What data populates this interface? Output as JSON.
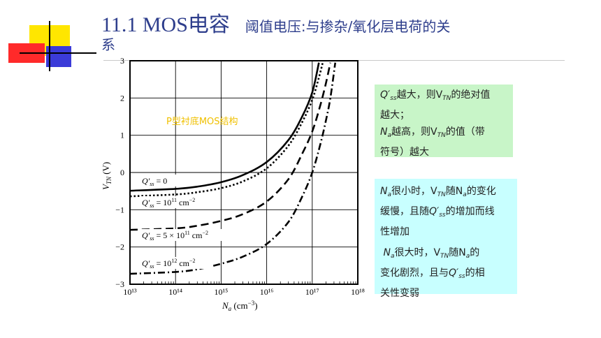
{
  "title": {
    "main": "11.1 MOS电容",
    "sub_line1": "阈值电压:与掺杂/氧化层电荷的关",
    "sub_line2": "系"
  },
  "colors": {
    "title": "#2e3e8c",
    "green_box": "#c8f5c8",
    "cyan_box": "#c8ffff",
    "substrate_label": "#f0c000"
  },
  "chart_data": {
    "type": "line",
    "xlabel": "Na (cm⁻³)",
    "ylabel": "VTN (V)",
    "xscale": "log",
    "xlim": [
      10000000000000.0,
      1e+18
    ],
    "ylim": [
      -3,
      3
    ],
    "x_tick_labels": [
      "10¹³",
      "10¹⁴",
      "10¹⁵",
      "10¹⁶",
      "10¹⁷",
      "10¹⁸"
    ],
    "y_tick_labels": [
      "3",
      "2",
      "1",
      "0",
      "−1",
      "−2",
      "−3"
    ],
    "annotation": "P型衬底MOS结构",
    "series": [
      {
        "name": "Q′ss = 0",
        "style": "solid",
        "x": [
          10000000000000.0,
          100000000000000.0,
          300000000000000.0,
          1000000000000000.0,
          3000000000000000.0,
          1e+16,
          3e+16,
          6e+16,
          1e+17,
          1.4e+17
        ],
        "y": [
          -0.49,
          -0.44,
          -0.38,
          -0.26,
          -0.07,
          0.28,
          0.87,
          1.5,
          2.15,
          2.95
        ]
      },
      {
        "name": "Q′ss = 10¹¹ cm⁻²",
        "style": "dotted",
        "x": [
          10000000000000.0,
          100000000000000.0,
          300000000000000.0,
          1000000000000000.0,
          3000000000000000.0,
          1e+16,
          3e+16,
          6e+16,
          1e+17,
          1.4e+17,
          1.7e+17
        ],
        "y": [
          -0.64,
          -0.59,
          -0.53,
          -0.42,
          -0.24,
          0.11,
          0.72,
          1.35,
          1.95,
          2.55,
          2.95
        ]
      },
      {
        "name": "Q′ss = 5 × 10¹¹ cm⁻²",
        "style": "dashed",
        "x": [
          10000000000000.0,
          100000000000000.0,
          300000000000000.0,
          1000000000000000.0,
          3000000000000000.0,
          1e+16,
          3e+16,
          6e+16,
          1e+17,
          1.5e+17,
          2e+17,
          2.5e+17
        ],
        "y": [
          -1.54,
          -1.5,
          -1.43,
          -1.3,
          -1.12,
          -0.78,
          -0.18,
          0.5,
          1.1,
          1.8,
          2.4,
          2.95
        ]
      },
      {
        "name": "Q′ss = 10¹² cm⁻²",
        "style": "dashdot",
        "x": [
          10000000000000.0,
          100000000000000.0,
          300000000000000.0,
          1000000000000000.0,
          3000000000000000.0,
          1e+16,
          3e+16,
          6e+16,
          1e+17,
          1.5e+17,
          2e+17,
          2.5e+17,
          3.2e+17
        ],
        "y": [
          -2.72,
          -2.67,
          -2.6,
          -2.45,
          -2.26,
          -1.92,
          -1.33,
          -0.65,
          0.0,
          0.75,
          1.4,
          2.0,
          2.95
        ]
      }
    ]
  },
  "notes": {
    "green": {
      "line1_prefix": "Q′",
      "line1_sub": "ss",
      "line1_mid": "越大，则V",
      "line1_sub2": "TN",
      "line1_rest": "的绝对值",
      "line2": "越大；",
      "line3_prefix": "N",
      "line3_sub": "a",
      "line3_mid": "越高，则V",
      "line3_sub2": "TN",
      "line3_rest": "的值（带",
      "line4": "符号）越大"
    },
    "cyan": {
      "p1_n": "N",
      "p1_a": "a",
      "p1_t1": "很小时，V",
      "p1_tn": "TN",
      "p1_t2": "随N",
      "p1_a2": "a",
      "p1_t3": "的变化",
      "p1_line2_a": "缓慢，且随",
      "p1_q": "Q′",
      "p1_ss": "ss",
      "p1_line2_b": "的增加而线",
      "p1_line3": "性增加",
      "p2_n": "N",
      "p2_a": "a",
      "p2_t1": "很大时，V",
      "p2_tn": "TN",
      "p2_t2": "随N",
      "p2_a2": "a",
      "p2_t3": "的",
      "p2_line2_a": "变化剧烈，且与",
      "p2_q": "Q′",
      "p2_ss": "ss",
      "p2_line2_b": "的相",
      "p2_line3": "关性变弱"
    }
  }
}
